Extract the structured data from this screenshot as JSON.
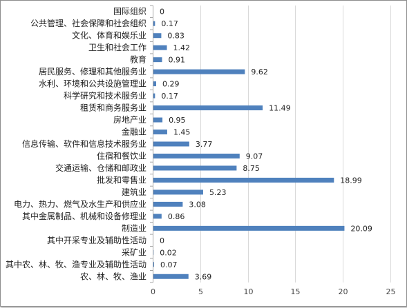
{
  "chart_data": {
    "type": "bar",
    "orientation": "horizontal",
    "title": "",
    "xlabel": "",
    "ylabel": "",
    "xlim": [
      0,
      25
    ],
    "x_ticks": [
      0,
      5,
      10,
      15,
      20,
      25
    ],
    "grid": "vertical",
    "legend": "none",
    "bar_color": "#4f81bd",
    "categories": [
      "国际组织",
      "公共管理、社会保障和社会组织",
      "文化、体育和娱乐业",
      "卫生和社会工作",
      "教育",
      "居民服务、修理和其他服务业",
      "水利、环境和公共设施管理业",
      "科学研究和技术服务业",
      "租赁和商务服务业",
      "房地产业",
      "金融业",
      "信息传输、软件和信息技术服务业",
      "住宿和餐饮业",
      "交通运输、仓储和邮政业",
      "批发和零售业",
      "建筑业",
      "电力、热力、燃气及水生产和供应业",
      "其中金属制品、机械和设备修理业",
      "制造业",
      "其中开采专业及辅助性活动",
      "采矿业",
      "其中农、林、牧、渔专业及辅助性活动",
      "农、林、牧、渔业"
    ],
    "values": [
      0,
      0.17,
      0.83,
      1.42,
      0.91,
      9.62,
      0.29,
      0.17,
      11.49,
      0.95,
      1.45,
      3.77,
      9.07,
      8.75,
      18.99,
      5.23,
      3.08,
      0.86,
      20.09,
      0,
      0.02,
      0.07,
      3.69
    ],
    "value_labels": [
      "0",
      "0.17",
      "0.83",
      "1.42",
      "0.91",
      "9.62",
      "0.29",
      "0.17",
      "11.49",
      "0.95",
      "1.45",
      "3.77",
      "9.07",
      "8.75",
      "18.99",
      "5.23",
      "3.08",
      "0.86",
      "20.09",
      "0",
      "0.02",
      "0.07",
      "3.69"
    ],
    "tick_labels": [
      "0",
      "5",
      "10",
      "15",
      "20",
      "25"
    ]
  }
}
